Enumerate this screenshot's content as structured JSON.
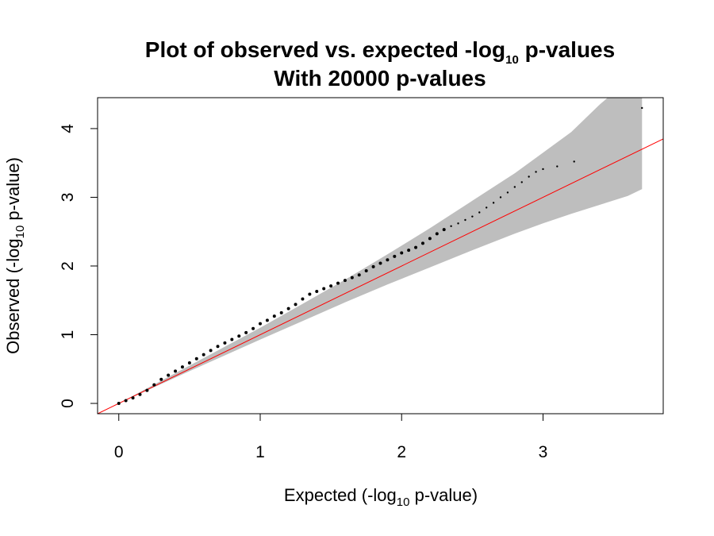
{
  "chart_data": {
    "type": "scatter",
    "title_main": "Plot of observed vs. expected -log",
    "title_sub": "10",
    "title_suffix": " p-values",
    "subtitle": "With 20000 p-values",
    "xlabel_pre": "Expected (-log",
    "xlabel_sub": "10",
    "xlabel_post": " p-value)",
    "ylabel_pre": "Observed (-log",
    "ylabel_sub": "10",
    "ylabel_post": " p-value)",
    "xlim": [
      -0.15,
      3.85
    ],
    "ylim": [
      -0.15,
      4.45
    ],
    "x_ticks": [
      0,
      1,
      2,
      3
    ],
    "x_tick_labels": [
      "0",
      "1",
      "2",
      "3"
    ],
    "y_ticks": [
      0,
      1,
      2,
      3,
      4
    ],
    "y_tick_labels": [
      "0",
      "1",
      "2",
      "3",
      "4"
    ],
    "grid": false,
    "reference_line": {
      "name": "y = x",
      "color": "#ff0000",
      "slope": 1,
      "intercept": 0
    },
    "confidence_band": {
      "color": "#bebebe",
      "x": [
        0.0,
        0.5,
        1.0,
        1.3,
        1.6,
        1.9,
        2.2,
        2.5,
        2.8,
        3.0,
        3.2,
        3.4,
        3.6,
        3.7
      ],
      "lower": [
        0.0,
        0.47,
        0.93,
        1.2,
        1.47,
        1.73,
        1.98,
        2.23,
        2.47,
        2.62,
        2.76,
        2.89,
        3.02,
        3.12
      ],
      "upper": [
        0.0,
        0.55,
        1.1,
        1.45,
        1.8,
        2.17,
        2.55,
        2.95,
        3.35,
        3.65,
        3.95,
        4.35,
        4.7,
        4.8
      ]
    },
    "series": [
      {
        "color": "#000000",
        "points": [
          [
            0.0,
            0.0
          ],
          [
            0.05,
            0.04
          ],
          [
            0.1,
            0.08
          ],
          [
            0.15,
            0.13
          ],
          [
            0.2,
            0.19
          ],
          [
            0.25,
            0.27
          ],
          [
            0.3,
            0.35
          ],
          [
            0.35,
            0.41
          ],
          [
            0.4,
            0.47
          ],
          [
            0.45,
            0.53
          ],
          [
            0.5,
            0.59
          ],
          [
            0.55,
            0.65
          ],
          [
            0.6,
            0.71
          ],
          [
            0.65,
            0.77
          ],
          [
            0.7,
            0.83
          ],
          [
            0.75,
            0.88
          ],
          [
            0.8,
            0.93
          ],
          [
            0.85,
            0.98
          ],
          [
            0.9,
            1.03
          ],
          [
            0.95,
            1.09
          ],
          [
            1.0,
            1.16
          ],
          [
            1.05,
            1.21
          ],
          [
            1.1,
            1.27
          ],
          [
            1.15,
            1.32
          ],
          [
            1.2,
            1.38
          ],
          [
            1.25,
            1.44
          ],
          [
            1.3,
            1.52
          ],
          [
            1.35,
            1.59
          ],
          [
            1.4,
            1.63
          ],
          [
            1.45,
            1.67
          ],
          [
            1.5,
            1.71
          ],
          [
            1.55,
            1.75
          ],
          [
            1.6,
            1.79
          ],
          [
            1.65,
            1.83
          ],
          [
            1.7,
            1.87
          ],
          [
            1.75,
            1.93
          ],
          [
            1.8,
            1.99
          ],
          [
            1.85,
            2.04
          ],
          [
            1.9,
            2.09
          ],
          [
            1.95,
            2.14
          ],
          [
            2.0,
            2.19
          ],
          [
            2.05,
            2.23
          ],
          [
            2.1,
            2.27
          ],
          [
            2.15,
            2.33
          ],
          [
            2.2,
            2.4
          ],
          [
            2.25,
            2.47
          ],
          [
            2.3,
            2.53
          ],
          [
            2.35,
            2.58
          ],
          [
            2.4,
            2.62
          ],
          [
            2.45,
            2.67
          ],
          [
            2.5,
            2.72
          ],
          [
            2.55,
            2.78
          ],
          [
            2.6,
            2.85
          ],
          [
            2.65,
            2.92
          ],
          [
            2.7,
            3.0
          ],
          [
            2.75,
            3.07
          ],
          [
            2.8,
            3.15
          ],
          [
            2.85,
            3.22
          ],
          [
            2.9,
            3.3
          ],
          [
            2.95,
            3.37
          ],
          [
            3.0,
            3.41
          ],
          [
            3.1,
            3.45
          ],
          [
            3.22,
            3.52
          ],
          [
            3.7,
            4.3
          ]
        ]
      }
    ]
  }
}
